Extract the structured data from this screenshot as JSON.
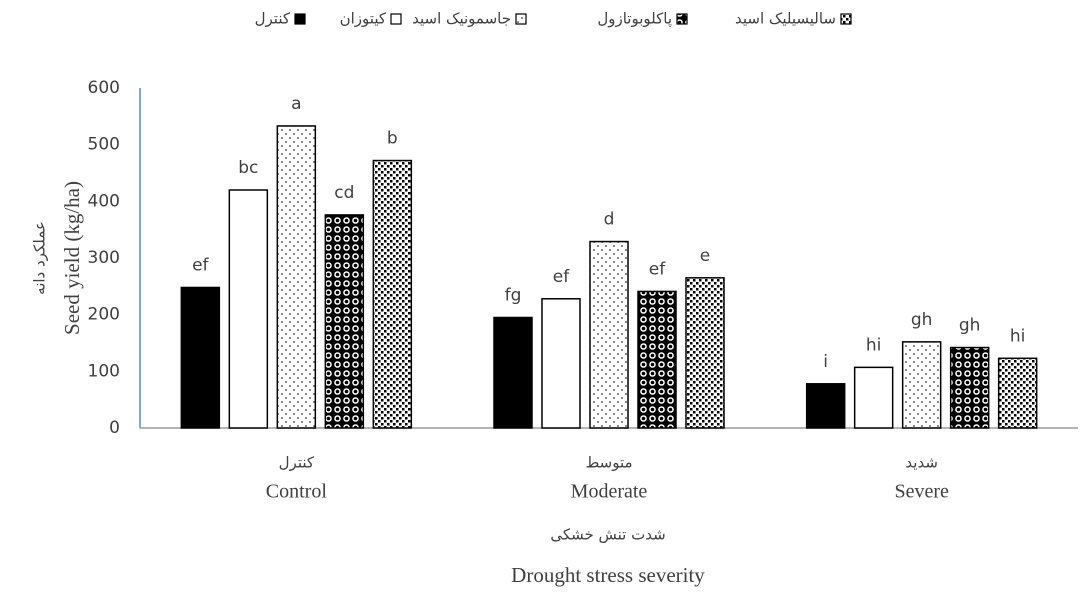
{
  "chart_data": {
    "type": "bar",
    "categories": [
      [
        "کنترل",
        "Control"
      ],
      [
        "متوسط",
        "Moderate"
      ],
      [
        "شدید",
        "Severe"
      ]
    ],
    "ylabel": [
      "عملکرد دانه",
      "Seed yield (kg/ha)"
    ],
    "xlabel": [
      "شدت تنش خشکی",
      "Drought stress severity"
    ],
    "series": [
      {
        "name": "کنترل",
        "color": "#000000",
        "pattern": "solid",
        "values": [
          248,
          195,
          78
        ],
        "letters": [
          "ef",
          "fg",
          "i"
        ]
      },
      {
        "name": "کیتوزان",
        "color": "#ffffff",
        "pattern": "solid",
        "values": [
          420,
          228,
          107
        ],
        "letters": [
          "bc",
          "ef",
          "hi"
        ]
      },
      {
        "name": "جاسمونیک اسید",
        "color": "#000000",
        "pattern": "dots",
        "values": [
          533,
          329,
          152
        ],
        "letters": [
          "a",
          "d",
          "gh"
        ]
      },
      {
        "name": "پاکلوبوتازول",
        "color": "#000000",
        "pattern": "circles",
        "values": [
          376,
          241,
          142
        ],
        "letters": [
          "cd",
          "ef",
          "gh"
        ]
      },
      {
        "name": "سالیسیلیک اسید",
        "color": "#000000",
        "pattern": "checker",
        "values": [
          472,
          265,
          123
        ],
        "letters": [
          "b",
          "e",
          "hi"
        ]
      }
    ],
    "ylim": [
      0,
      600
    ],
    "yticks": [
      0,
      100,
      200,
      300,
      400,
      500,
      600
    ],
    "legend": "top"
  }
}
